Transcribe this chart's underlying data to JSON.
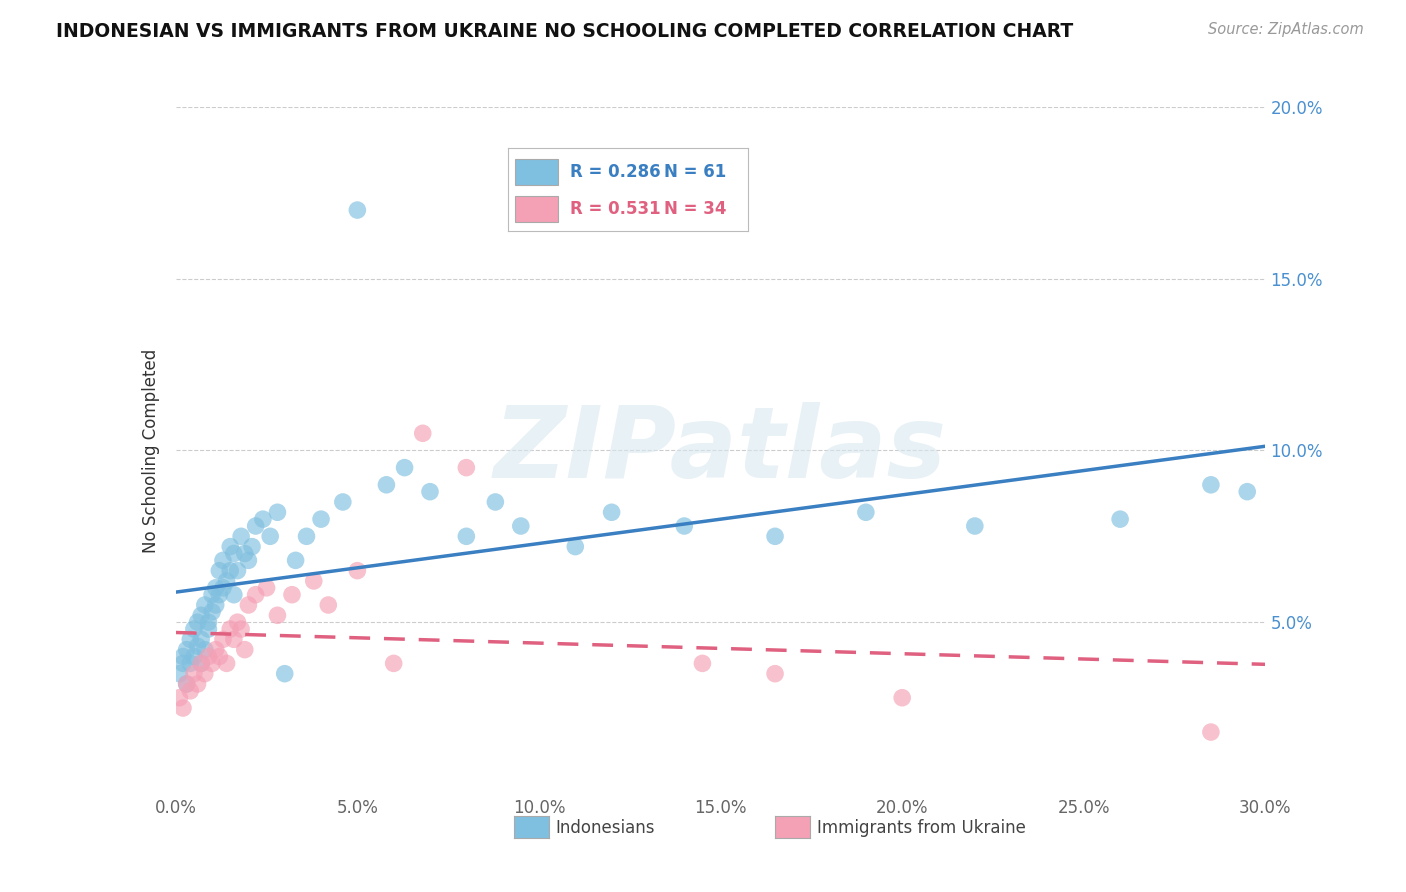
{
  "title": "INDONESIAN VS IMMIGRANTS FROM UKRAINE NO SCHOOLING COMPLETED CORRELATION CHART",
  "source": "Source: ZipAtlas.com",
  "ylabel": "No Schooling Completed",
  "xlim": [
    0.0,
    0.3
  ],
  "ylim": [
    0.0,
    0.2
  ],
  "xtick_labels": [
    "0.0%",
    "5.0%",
    "10.0%",
    "15.0%",
    "20.0%",
    "25.0%",
    "30.0%"
  ],
  "ytick_labels": [
    "",
    "5.0%",
    "10.0%",
    "15.0%",
    "20.0%"
  ],
  "legend_r1": "R = 0.286",
  "legend_n1": "N = 61",
  "legend_r2": "R = 0.531",
  "legend_n2": "N = 34",
  "color_blue": "#7fbfdf",
  "color_pink": "#f4a0b5",
  "line_blue": "#3a7fc1",
  "line_pink": "#e06080",
  "watermark": "ZIPatlas",
  "indonesian_x": [
    0.001,
    0.002,
    0.002,
    0.003,
    0.003,
    0.004,
    0.004,
    0.005,
    0.005,
    0.006,
    0.006,
    0.007,
    0.007,
    0.007,
    0.008,
    0.008,
    0.009,
    0.009,
    0.01,
    0.01,
    0.011,
    0.011,
    0.012,
    0.012,
    0.013,
    0.013,
    0.014,
    0.015,
    0.015,
    0.016,
    0.016,
    0.017,
    0.018,
    0.019,
    0.02,
    0.021,
    0.022,
    0.024,
    0.026,
    0.028,
    0.03,
    0.033,
    0.036,
    0.04,
    0.046,
    0.05,
    0.058,
    0.063,
    0.07,
    0.08,
    0.088,
    0.095,
    0.11,
    0.12,
    0.14,
    0.165,
    0.19,
    0.22,
    0.26,
    0.285,
    0.295
  ],
  "indonesian_y": [
    0.035,
    0.038,
    0.04,
    0.032,
    0.042,
    0.038,
    0.045,
    0.04,
    0.048,
    0.043,
    0.05,
    0.045,
    0.052,
    0.038,
    0.055,
    0.042,
    0.05,
    0.048,
    0.053,
    0.058,
    0.055,
    0.06,
    0.058,
    0.065,
    0.06,
    0.068,
    0.062,
    0.065,
    0.072,
    0.058,
    0.07,
    0.065,
    0.075,
    0.07,
    0.068,
    0.072,
    0.078,
    0.08,
    0.075,
    0.082,
    0.035,
    0.068,
    0.075,
    0.08,
    0.085,
    0.17,
    0.09,
    0.095,
    0.088,
    0.075,
    0.085,
    0.078,
    0.072,
    0.082,
    0.078,
    0.075,
    0.082,
    0.078,
    0.08,
    0.09,
    0.088
  ],
  "ukraine_x": [
    0.001,
    0.002,
    0.003,
    0.004,
    0.005,
    0.006,
    0.007,
    0.008,
    0.009,
    0.01,
    0.011,
    0.012,
    0.013,
    0.014,
    0.015,
    0.016,
    0.017,
    0.018,
    0.019,
    0.02,
    0.022,
    0.025,
    0.028,
    0.032,
    0.038,
    0.042,
    0.05,
    0.06,
    0.068,
    0.08,
    0.145,
    0.165,
    0.2,
    0.285
  ],
  "ukraine_y": [
    0.028,
    0.025,
    0.032,
    0.03,
    0.035,
    0.032,
    0.038,
    0.035,
    0.04,
    0.038,
    0.042,
    0.04,
    0.045,
    0.038,
    0.048,
    0.045,
    0.05,
    0.048,
    0.042,
    0.055,
    0.058,
    0.06,
    0.052,
    0.058,
    0.062,
    0.055,
    0.065,
    0.038,
    0.105,
    0.095,
    0.038,
    0.035,
    0.028,
    0.018
  ]
}
